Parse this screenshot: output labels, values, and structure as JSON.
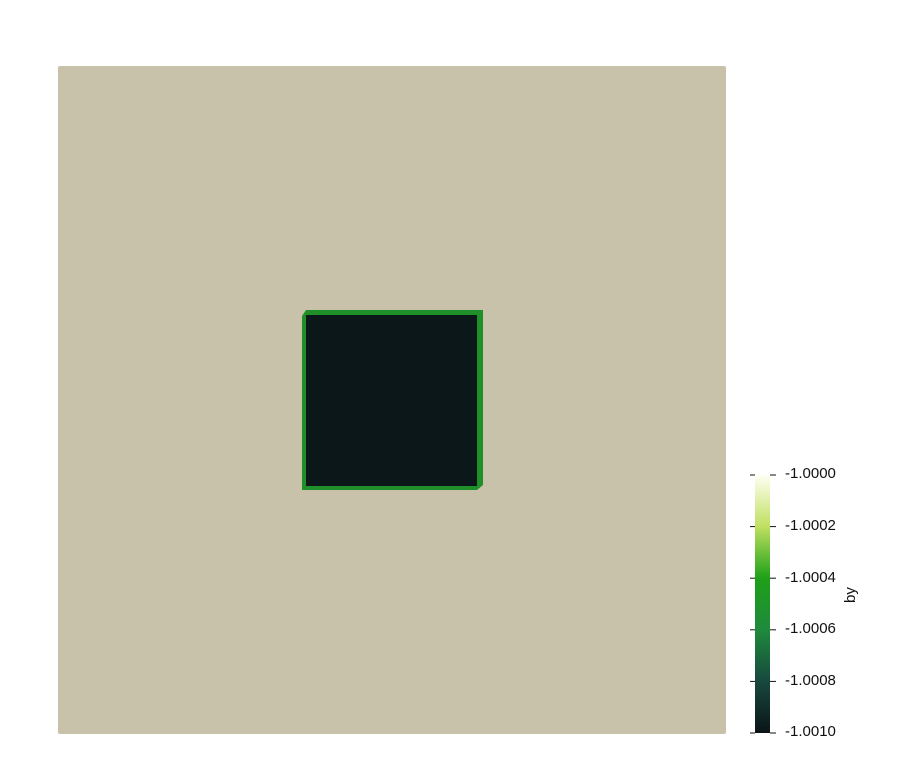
{
  "render": {
    "background_color": "#ffffff",
    "domain_color": "#c8c2ab",
    "inclusion_color": "#0c1719",
    "inclusion_edge_color": "#1f8f2a"
  },
  "colorbar": {
    "title": "by",
    "ticks": [
      {
        "label": "-1.0000",
        "value": -1.0
      },
      {
        "label": "-1.0002",
        "value": -1.0002
      },
      {
        "label": "-1.0004",
        "value": -1.0004
      },
      {
        "label": "-1.0006",
        "value": -1.0006
      },
      {
        "label": "-1.0008",
        "value": -1.0008
      },
      {
        "label": "-1.0010",
        "value": -1.001
      }
    ],
    "range": [
      -1.001,
      -1.0
    ],
    "colormap_stops": [
      {
        "value": -1.0,
        "color": "#fffff2"
      },
      {
        "value": -1.0002,
        "color": "#bfe060"
      },
      {
        "value": -1.0004,
        "color": "#1ea018"
      },
      {
        "value": -1.0006,
        "color": "#1e8a3c"
      },
      {
        "value": -1.0008,
        "color": "#17483e"
      },
      {
        "value": -1.001,
        "color": "#0b1418"
      }
    ]
  }
}
